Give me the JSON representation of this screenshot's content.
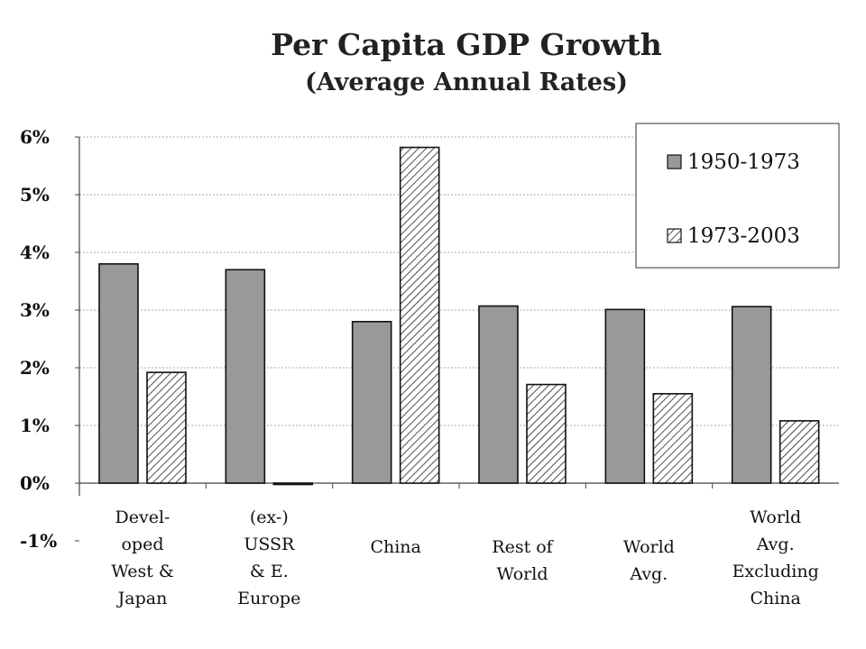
{
  "chart_data": {
    "type": "bar",
    "title": "Per Capita GDP Growth",
    "subtitle": "(Average Annual Rates)",
    "xlabel": "",
    "ylabel": "",
    "categories": [
      "Devel- oped West & Japan",
      "(ex-) USSR & E. Europe",
      "China",
      "Rest of World",
      "World Avg.",
      "World Avg. Excluding China"
    ],
    "category_lines": [
      [
        "Devel-",
        "oped",
        "West &",
        "Japan"
      ],
      [
        "(ex-)",
        "USSR",
        "& E.",
        "Europe"
      ],
      [
        "China"
      ],
      [
        "Rest of",
        "World"
      ],
      [
        "World",
        "Avg."
      ],
      [
        "World",
        "Avg.",
        "Excluding",
        "China"
      ]
    ],
    "series": [
      {
        "name": "1950-1973",
        "values": [
          3.8,
          3.7,
          2.8,
          3.07,
          3.01,
          3.06
        ],
        "fill": "#999999",
        "pattern": "solid"
      },
      {
        "name": "1973-2003",
        "values": [
          1.92,
          0.0,
          5.82,
          1.71,
          1.55,
          1.08
        ],
        "fill": "#ffffff",
        "pattern": "hatched"
      }
    ],
    "yticks": [
      "6%",
      "5%",
      "4%",
      "3%",
      "2%",
      "1%",
      "0%",
      "-1%"
    ],
    "ytick_values": [
      6,
      5,
      4,
      3,
      2,
      1,
      0,
      -1
    ],
    "ylim": [
      -1,
      6
    ],
    "grid": true,
    "legend_position": "top-right"
  }
}
